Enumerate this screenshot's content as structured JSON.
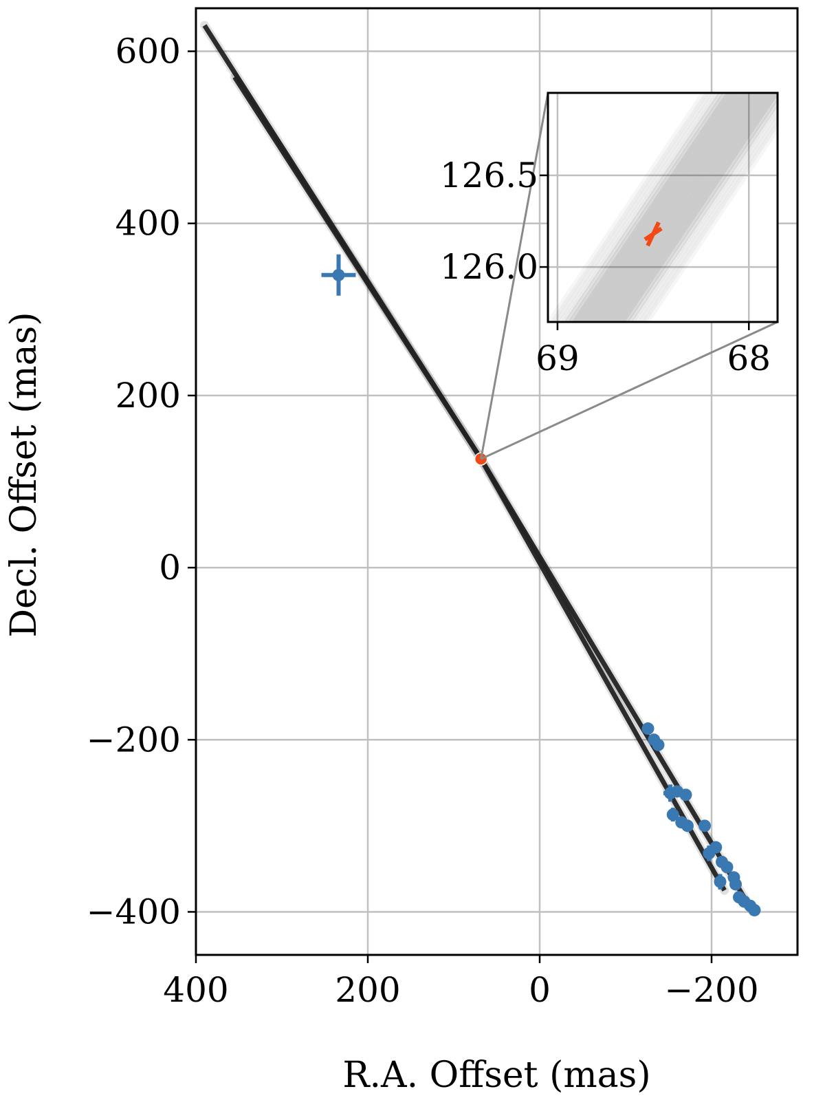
{
  "chart_data": {
    "type": "scatter",
    "xlabel": "R.A. Offset (mas)",
    "ylabel": "Decl. Offset (mas)",
    "xlim": [
      400,
      -300
    ],
    "ylim": [
      -450,
      650
    ],
    "x_ticks": [
      400,
      200,
      0,
      -200
    ],
    "x_tick_labels": [
      "400",
      "200",
      "0",
      "−200"
    ],
    "y_ticks": [
      600,
      400,
      200,
      0,
      -200,
      -400
    ],
    "y_tick_labels": [
      "600",
      "400",
      "200",
      "0",
      "−200",
      "−400"
    ],
    "grid": true,
    "orbit_tracks": [
      {
        "x": [
          390,
          68.3,
          -248
        ],
        "y": [
          630,
          126.3,
          -400
        ]
      },
      {
        "x": [
          355,
          68.3,
          -215
        ],
        "y": [
          570,
          126.3,
          -375
        ]
      }
    ],
    "series": [
      {
        "color": "#3a78b2",
        "marker": "circle-with-errorbars",
        "points": [
          {
            "x": 234,
            "y": 340,
            "xerr": 20,
            "yerr": 24
          },
          {
            "x": -126,
            "y": -187,
            "xerr": 3,
            "yerr": 3
          },
          {
            "x": -133,
            "y": -200,
            "xerr": 3,
            "yerr": 3
          },
          {
            "x": -138,
            "y": -206,
            "xerr": 3,
            "yerr": 3
          },
          {
            "x": -152,
            "y": -262,
            "xerr": 8,
            "yerr": 10
          },
          {
            "x": -160,
            "y": -260,
            "xerr": 4,
            "yerr": 4
          },
          {
            "x": -170,
            "y": -264,
            "xerr": 3,
            "yerr": 3
          },
          {
            "x": -155,
            "y": -287,
            "xerr": 6,
            "yerr": 8
          },
          {
            "x": -165,
            "y": -296,
            "xerr": 4,
            "yerr": 4
          },
          {
            "x": -172,
            "y": -300,
            "xerr": 4,
            "yerr": 4
          },
          {
            "x": -192,
            "y": -300,
            "xerr": 3,
            "yerr": 3
          },
          {
            "x": -197,
            "y": -332,
            "xerr": 7,
            "yerr": 9
          },
          {
            "x": -205,
            "y": -325,
            "xerr": 4,
            "yerr": 4
          },
          {
            "x": -212,
            "y": -342,
            "xerr": 4,
            "yerr": 4
          },
          {
            "x": -218,
            "y": -348,
            "xerr": 4,
            "yerr": 4
          },
          {
            "x": -210,
            "y": -365,
            "xerr": 6,
            "yerr": 9
          },
          {
            "x": -226,
            "y": -360,
            "xerr": 4,
            "yerr": 4
          },
          {
            "x": -228,
            "y": -368,
            "xerr": 4,
            "yerr": 4
          },
          {
            "x": -232,
            "y": -383,
            "xerr": 4,
            "yerr": 4
          },
          {
            "x": -238,
            "y": -388,
            "xerr": 3,
            "yerr": 3
          },
          {
            "x": -245,
            "y": -393,
            "xerr": 3,
            "yerr": 3
          },
          {
            "x": -250,
            "y": -398,
            "xerr": 5,
            "yerr": 4
          }
        ]
      },
      {
        "color": "#f24a16",
        "marker": "circle",
        "points": [
          {
            "x": 68.3,
            "y": 126.3
          }
        ]
      }
    ],
    "inset": {
      "xlim": [
        69.05,
        67.85
      ],
      "ylim": [
        125.7,
        126.95
      ],
      "x_ticks": [
        69,
        68
      ],
      "x_tick_labels": [
        "69",
        "68"
      ],
      "y_ticks": [
        126.5,
        126.0
      ],
      "y_tick_labels": [
        "126.5",
        "126.0"
      ],
      "grid": true,
      "track_slope": -1.55,
      "track_center_x_range": [
        68.15,
        68.65
      ],
      "track_anchor_y": 126.3,
      "marker": {
        "x": 68.5,
        "y": 126.18,
        "color": "#f24a16",
        "shape": "cross"
      }
    }
  }
}
